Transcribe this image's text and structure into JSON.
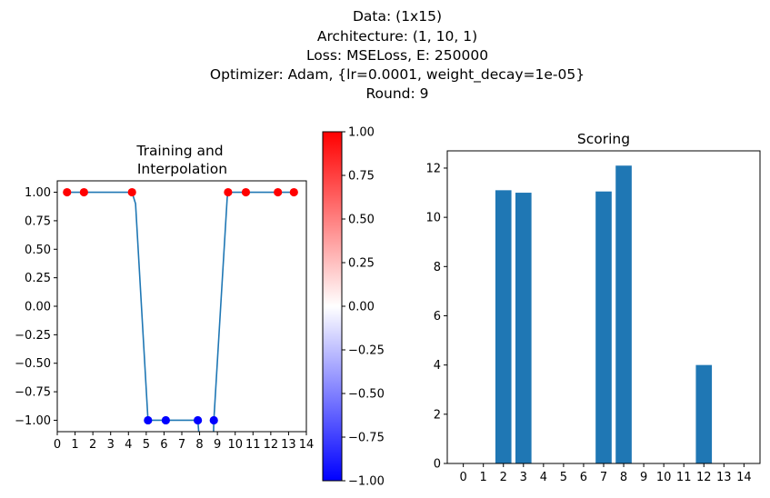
{
  "figure": {
    "suptitle_lines": [
      "Data: (1x15)",
      "Architecture: (1, 10, 1)",
      "Loss: MSELoss, E: 250000",
      "Optimizer: Adam, {lr=0.0001, weight_decay=1e-05}",
      "Round: 9"
    ]
  },
  "chart_data": [
    {
      "type": "scatter",
      "title_lines": [
        "Training and",
        " Interpolation"
      ],
      "xlim": [
        0,
        14
      ],
      "ylim": [
        -1.1,
        1.1
      ],
      "xticks": [
        0,
        1,
        2,
        3,
        4,
        5,
        6,
        7,
        8,
        9,
        10,
        11,
        12,
        13,
        14
      ],
      "yticks": [
        1.0,
        0.75,
        0.5,
        0.25,
        0.0,
        -0.25,
        -0.5,
        -0.75,
        -1.0
      ],
      "ytick_labels": [
        "1.00",
        "0.75",
        "0.50",
        "0.25",
        "0.00",
        "−0.25",
        "−0.50",
        "−0.75",
        "−1.00"
      ],
      "points": [
        {
          "x": 0.55,
          "y": 1.0
        },
        {
          "x": 1.5,
          "y": 1.0
        },
        {
          "x": 4.2,
          "y": 1.0
        },
        {
          "x": 5.1,
          "y": -1.0
        },
        {
          "x": 6.1,
          "y": -1.0
        },
        {
          "x": 7.9,
          "y": -1.0
        },
        {
          "x": 8.8,
          "y": -1.0
        },
        {
          "x": 9.6,
          "y": 1.0
        },
        {
          "x": 10.6,
          "y": 1.0
        },
        {
          "x": 12.4,
          "y": 1.0
        },
        {
          "x": 13.3,
          "y": 1.0
        }
      ],
      "line": [
        {
          "x": 0.55,
          "y": 1.0
        },
        {
          "x": 4.2,
          "y": 1.0
        },
        {
          "x": 4.4,
          "y": 0.9
        },
        {
          "x": 5.1,
          "y": -1.0
        },
        {
          "x": 6.1,
          "y": -1.0
        },
        {
          "x": 7.9,
          "y": -1.0
        },
        {
          "x": 8.05,
          "y": -1.3
        },
        {
          "x": 8.75,
          "y": -1.3
        },
        {
          "x": 8.8,
          "y": -1.0
        },
        {
          "x": 9.55,
          "y": 0.95
        },
        {
          "x": 9.6,
          "y": 1.0
        },
        {
          "x": 13.3,
          "y": 1.0
        }
      ],
      "line_color": "#1f77b4",
      "colormap": "bwr",
      "colorbar": {
        "vmin": -1.0,
        "vmax": 1.0,
        "ticks": [
          1.0,
          0.75,
          0.5,
          0.25,
          0.0,
          -0.25,
          -0.5,
          -0.75,
          -1.0
        ],
        "tick_labels": [
          "1.00",
          "0.75",
          "0.50",
          "0.25",
          "0.00",
          "−0.25",
          "−0.50",
          "−0.75",
          "−1.00"
        ],
        "colors": [
          "#0000ff",
          "#ffffff",
          "#ff0000"
        ]
      }
    },
    {
      "type": "bar",
      "title": "Scoring",
      "categories": [
        "0",
        "1",
        "2",
        "3",
        "4",
        "5",
        "6",
        "7",
        "8",
        "9",
        "10",
        "11",
        "12",
        "13",
        "14"
      ],
      "values": [
        0,
        0,
        11.1,
        11.0,
        0,
        0,
        0,
        11.05,
        12.1,
        0,
        0,
        0,
        4.0,
        0,
        0
      ],
      "ylim": [
        0,
        12.7
      ],
      "yticks": [
        0,
        2,
        4,
        6,
        8,
        10,
        12
      ],
      "bar_color": "#1f77b4"
    }
  ]
}
